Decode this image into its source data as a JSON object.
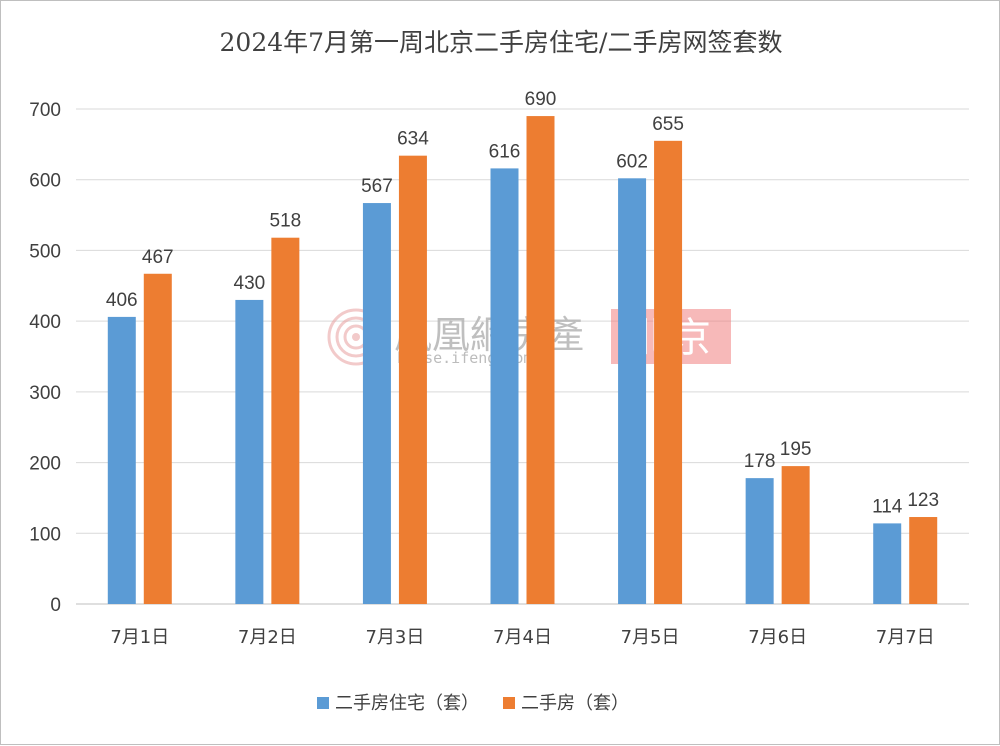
{
  "chart_data": {
    "type": "bar",
    "title": "2024年7月第一周北京二手房住宅/二手房网签套数",
    "categories": [
      "7月1日",
      "7月2日",
      "7月3日",
      "7月4日",
      "7月5日",
      "7月6日",
      "7月7日"
    ],
    "series": [
      {
        "name": "二手房住宅（套）",
        "values": [
          406,
          430,
          567,
          616,
          602,
          178,
          114
        ],
        "color": "#5b9bd5"
      },
      {
        "name": "二手房（套）",
        "values": [
          467,
          518,
          634,
          690,
          655,
          195,
          123
        ],
        "color": "#ed7d31"
      }
    ],
    "ylim": [
      0,
      700
    ],
    "yticks": [
      0,
      100,
      200,
      300,
      400,
      500,
      600,
      700
    ],
    "grid": true,
    "legend_position": "bottom"
  },
  "watermark": {
    "brand": "鳳凰網房產",
    "url": "house.ifeng.com",
    "city": "北京"
  }
}
